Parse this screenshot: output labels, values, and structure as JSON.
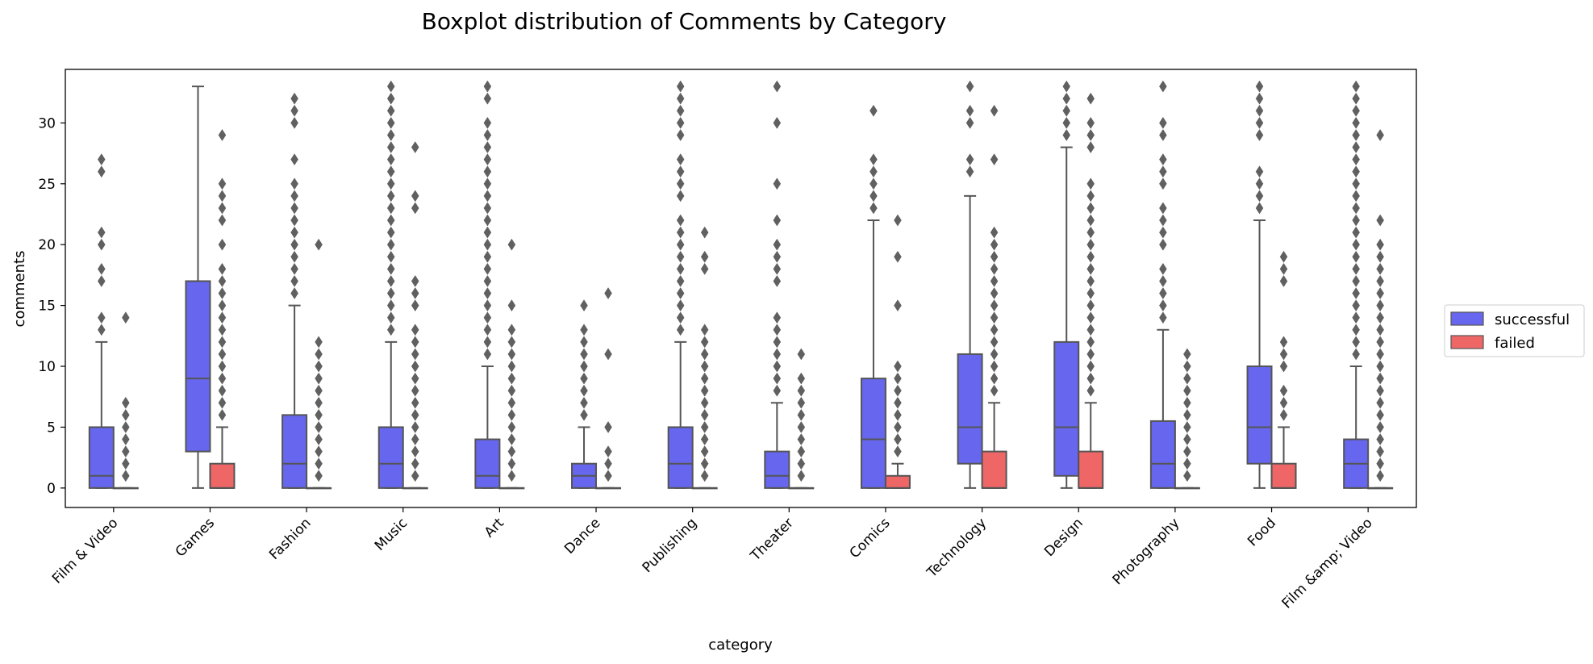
{
  "chart_data": {
    "type": "boxplot",
    "title": "Boxplot distribution of Comments by Category",
    "xlabel": "category",
    "ylabel": "comments",
    "ylim": [
      -1.6,
      34.4
    ],
    "yticks": [
      0,
      5,
      10,
      15,
      20,
      25,
      30
    ],
    "legend_position": "right",
    "colors": {
      "successful": "#6666ee",
      "failed": "#ee6666",
      "line": "#555555"
    },
    "categories": [
      "Film & Video",
      "Games",
      "Fashion",
      "Music",
      "Art",
      "Dance",
      "Publishing",
      "Theater",
      "Comics",
      "Technology",
      "Design",
      "Photography",
      "Food",
      "Film &amp; Video"
    ],
    "series": [
      {
        "name": "successful",
        "boxes": [
          {
            "q1": 0,
            "median": 1,
            "q3": 5,
            "whisker_low": 0,
            "whisker_high": 12,
            "outliers": [
              13,
              14,
              17,
              18,
              20,
              21,
              26,
              27
            ]
          },
          {
            "q1": 3,
            "median": 9,
            "q3": 17,
            "whisker_low": 0,
            "whisker_high": 33,
            "outliers": []
          },
          {
            "q1": 0,
            "median": 2,
            "q3": 6,
            "whisker_low": 0,
            "whisker_high": 15,
            "outliers": [
              16,
              17,
              18,
              19,
              20,
              21,
              22,
              23,
              24,
              25,
              27,
              30,
              31,
              32
            ]
          },
          {
            "q1": 0,
            "median": 2,
            "q3": 5,
            "whisker_low": 0,
            "whisker_high": 12,
            "outliers": [
              13,
              14,
              15,
              16,
              17,
              18,
              19,
              20,
              21,
              22,
              23,
              24,
              25,
              26,
              27,
              28,
              29,
              30,
              31,
              32,
              33
            ]
          },
          {
            "q1": 0,
            "median": 1,
            "q3": 4,
            "whisker_low": 0,
            "whisker_high": 10,
            "outliers": [
              11,
              12,
              13,
              14,
              15,
              16,
              17,
              18,
              19,
              20,
              21,
              22,
              23,
              24,
              25,
              26,
              27,
              28,
              29,
              30,
              32,
              33
            ]
          },
          {
            "q1": 0,
            "median": 1,
            "q3": 2,
            "whisker_low": 0,
            "whisker_high": 5,
            "outliers": [
              6,
              7,
              8,
              9,
              10,
              11,
              12,
              13,
              15
            ]
          },
          {
            "q1": 0,
            "median": 2,
            "q3": 5,
            "whisker_low": 0,
            "whisker_high": 12,
            "outliers": [
              13,
              14,
              15,
              16,
              17,
              18,
              19,
              20,
              21,
              22,
              24,
              25,
              26,
              27,
              29,
              30,
              31,
              32,
              33
            ]
          },
          {
            "q1": 0,
            "median": 1,
            "q3": 3,
            "whisker_low": 0,
            "whisker_high": 7,
            "outliers": [
              8,
              9,
              10,
              11,
              12,
              13,
              14,
              17,
              18,
              19,
              20,
              22,
              25,
              30,
              33
            ]
          },
          {
            "q1": 0,
            "median": 4,
            "q3": 9,
            "whisker_low": 0,
            "whisker_high": 22,
            "outliers": [
              23,
              24,
              25,
              26,
              27,
              31
            ]
          },
          {
            "q1": 2,
            "median": 5,
            "q3": 11,
            "whisker_low": 0,
            "whisker_high": 24,
            "outliers": [
              26,
              27,
              30,
              31,
              33
            ]
          },
          {
            "q1": 1,
            "median": 5,
            "q3": 12,
            "whisker_low": 0,
            "whisker_high": 28,
            "outliers": [
              29,
              30,
              31,
              32,
              33
            ]
          },
          {
            "q1": 0,
            "median": 2,
            "q3": 5.5,
            "whisker_low": 0,
            "whisker_high": 13,
            "outliers": [
              14,
              15,
              16,
              17,
              18,
              20,
              21,
              22,
              23,
              25,
              26,
              27,
              29,
              30,
              33
            ]
          },
          {
            "q1": 2,
            "median": 5,
            "q3": 10,
            "whisker_low": 0,
            "whisker_high": 22,
            "outliers": [
              23,
              24,
              25,
              26,
              29,
              30,
              31,
              32,
              33
            ]
          },
          {
            "q1": 0,
            "median": 2,
            "q3": 4,
            "whisker_low": 0,
            "whisker_high": 10,
            "outliers": [
              11,
              12,
              13,
              14,
              15,
              16,
              17,
              18,
              19,
              20,
              21,
              22,
              23,
              24,
              25,
              26,
              27,
              28,
              29,
              30,
              31,
              32,
              33
            ]
          }
        ]
      },
      {
        "name": "failed",
        "boxes": [
          {
            "q1": 0,
            "median": 0,
            "q3": 0,
            "whisker_low": 0,
            "whisker_high": 0,
            "outliers": [
              1,
              2,
              3,
              4,
              5,
              6,
              7,
              14
            ]
          },
          {
            "q1": 0,
            "median": 0,
            "q3": 2,
            "whisker_low": 0,
            "whisker_high": 5,
            "outliers": [
              6,
              7,
              8,
              9,
              10,
              11,
              12,
              13,
              14,
              15,
              16,
              17,
              18,
              20,
              22,
              23,
              24,
              25,
              29
            ]
          },
          {
            "q1": 0,
            "median": 0,
            "q3": 0,
            "whisker_low": 0,
            "whisker_high": 0,
            "outliers": [
              1,
              2,
              3,
              4,
              5,
              6,
              7,
              8,
              9,
              10,
              11,
              12,
              20
            ]
          },
          {
            "q1": 0,
            "median": 0,
            "q3": 0,
            "whisker_low": 0,
            "whisker_high": 0,
            "outliers": [
              1,
              2,
              3,
              4,
              5,
              6,
              7,
              8,
              9,
              10,
              11,
              12,
              13,
              15,
              16,
              17,
              23,
              24,
              28
            ]
          },
          {
            "q1": 0,
            "median": 0,
            "q3": 0,
            "whisker_low": 0,
            "whisker_high": 0,
            "outliers": [
              1,
              2,
              3,
              4,
              5,
              6,
              7,
              8,
              9,
              10,
              11,
              12,
              13,
              15,
              20
            ]
          },
          {
            "q1": 0,
            "median": 0,
            "q3": 0,
            "whisker_low": 0,
            "whisker_high": 0,
            "outliers": [
              1,
              2,
              3,
              5,
              11,
              16
            ]
          },
          {
            "q1": 0,
            "median": 0,
            "q3": 0,
            "whisker_low": 0,
            "whisker_high": 0,
            "outliers": [
              1,
              2,
              3,
              4,
              5,
              6,
              7,
              8,
              9,
              10,
              11,
              12,
              13,
              18,
              19,
              21
            ]
          },
          {
            "q1": 0,
            "median": 0,
            "q3": 0,
            "whisker_low": 0,
            "whisker_high": 0,
            "outliers": [
              1,
              2,
              3,
              4,
              5,
              6,
              7,
              8,
              9,
              11
            ]
          },
          {
            "q1": 0,
            "median": 0,
            "q3": 1,
            "whisker_low": 0,
            "whisker_high": 2,
            "outliers": [
              3,
              4,
              5,
              6,
              7,
              8,
              9,
              10,
              15,
              19,
              22
            ]
          },
          {
            "q1": 0,
            "median": 0,
            "q3": 3,
            "whisker_low": 0,
            "whisker_high": 7,
            "outliers": [
              8,
              9,
              10,
              11,
              12,
              13,
              14,
              15,
              16,
              17,
              18,
              19,
              20,
              21,
              27,
              31
            ]
          },
          {
            "q1": 0,
            "median": 0,
            "q3": 3,
            "whisker_low": 0,
            "whisker_high": 7,
            "outliers": [
              8,
              9,
              10,
              11,
              12,
              13,
              14,
              15,
              16,
              17,
              18,
              19,
              20,
              21,
              22,
              23,
              24,
              25,
              28,
              29,
              30,
              32
            ]
          },
          {
            "q1": 0,
            "median": 0,
            "q3": 0,
            "whisker_low": 0,
            "whisker_high": 0,
            "outliers": [
              1,
              2,
              3,
              4,
              5,
              6,
              7,
              8,
              9,
              10,
              11
            ]
          },
          {
            "q1": 0,
            "median": 0,
            "q3": 2,
            "whisker_low": 0,
            "whisker_high": 5,
            "outliers": [
              6,
              7,
              8,
              10,
              11,
              12,
              17,
              18,
              19
            ]
          },
          {
            "q1": 0,
            "median": 0,
            "q3": 0,
            "whisker_low": 0,
            "whisker_high": 0,
            "outliers": [
              1,
              2,
              3,
              4,
              5,
              6,
              7,
              8,
              9,
              10,
              11,
              12,
              13,
              14,
              15,
              16,
              17,
              18,
              19,
              20,
              22,
              29
            ]
          }
        ]
      }
    ]
  }
}
